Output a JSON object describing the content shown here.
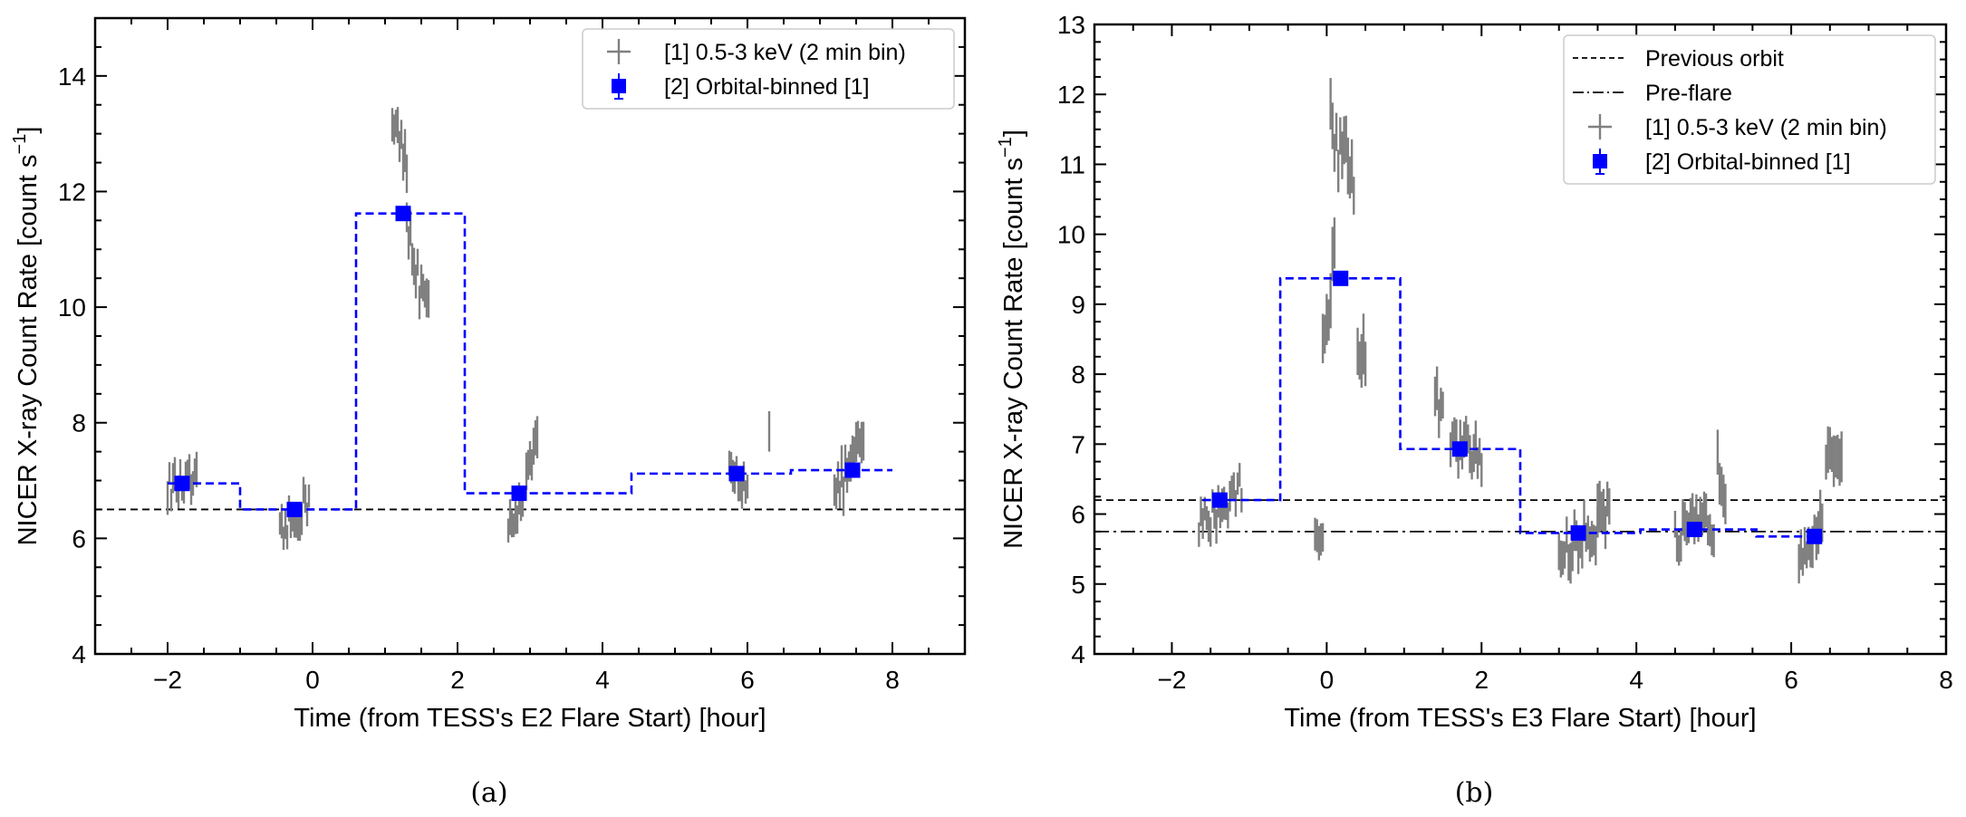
{
  "chart_data": [
    {
      "type": "line",
      "panel_caption": "(a)",
      "xlabel": "Time (from TESS's E2 Flare Start) [hour]",
      "ylabel": "NICER X-ray Count Rate [count s",
      "ylabel_sup": "−1",
      "ylabel_end": "]",
      "xlim": [
        -3,
        9
      ],
      "ylim": [
        4,
        15
      ],
      "xticks": [
        -2,
        0,
        2,
        4,
        6,
        8
      ],
      "xtick_labels": [
        "−2",
        "0",
        "2",
        "4",
        "6",
        "8"
      ],
      "yticks": [
        4,
        6,
        8,
        10,
        12,
        14
      ],
      "ytick_labels": [
        "4",
        "6",
        "8",
        "10",
        "12",
        "14"
      ],
      "hlines": [
        {
          "name": "baseline",
          "y": 6.5,
          "style": "dashed",
          "color": "#000000"
        }
      ],
      "step": {
        "name": "[2] Orbital-binned [1]",
        "color": "#0000ff",
        "edges": [
          -2.0,
          -1.0,
          0.6,
          2.1,
          4.4,
          6.6,
          8.0
        ],
        "values": [
          6.95,
          6.5,
          11.62,
          6.78,
          7.12,
          7.18
        ]
      },
      "binned": {
        "name": "[2] Orbital-binned [1]",
        "color": "#0000ff",
        "x": [
          -1.8,
          -0.25,
          1.25,
          2.85,
          5.85,
          7.45
        ],
        "y": [
          6.95,
          6.5,
          11.62,
          6.78,
          7.12,
          7.18
        ]
      },
      "raw_clusters": {
        "name": "[1] 0.5-3 keV (2 min bin)",
        "color": "#808080",
        "segments": [
          {
            "x0": -2.0,
            "x1": -1.6,
            "y0": 6.9,
            "y1": 6.95,
            "spread": 0.25,
            "err": 0.25
          },
          {
            "x0": -0.45,
            "x1": -0.05,
            "y0": 6.0,
            "y1": 6.7,
            "spread": 0.3,
            "err": 0.25
          },
          {
            "x0": 1.1,
            "x1": 1.3,
            "y0": 13.4,
            "y1": 12.3,
            "spread": 0.35,
            "err": 0.3
          },
          {
            "x0": 1.3,
            "x1": 1.6,
            "y0": 11.4,
            "y1": 9.8,
            "spread": 0.4,
            "err": 0.3
          },
          {
            "x0": 2.7,
            "x1": 2.9,
            "y0": 6.2,
            "y1": 6.7,
            "spread": 0.2,
            "err": 0.25
          },
          {
            "x0": 2.95,
            "x1": 3.1,
            "y0": 7.0,
            "y1": 7.7,
            "spread": 0.2,
            "err": 0.3
          },
          {
            "x0": 5.75,
            "x1": 6.0,
            "y0": 7.1,
            "y1": 7.0,
            "spread": 0.25,
            "err": 0.25
          },
          {
            "x0": 6.3,
            "x1": 6.3,
            "y0": 7.85,
            "y1": 7.85,
            "spread": 0.0,
            "err": 0.4
          },
          {
            "x0": 7.2,
            "x1": 7.6,
            "y0": 6.7,
            "y1": 7.7,
            "spread": 0.3,
            "err": 0.3
          }
        ]
      },
      "legend": {
        "position": "top-right",
        "entries": [
          {
            "label": "[1] 0.5-3 keV (2 min bin)",
            "marker": "errorbar-gray"
          },
          {
            "label": "[2] Orbital-binned [1]",
            "marker": "square-blue"
          }
        ]
      }
    },
    {
      "type": "line",
      "panel_caption": "(b)",
      "xlabel": "Time (from TESS's E3 Flare Start) [hour]",
      "ylabel": "NICER X-ray Count Rate [count s",
      "ylabel_sup": "−1",
      "ylabel_end": "]",
      "xlim": [
        -3,
        8
      ],
      "ylim": [
        4,
        13
      ],
      "xticks": [
        -2,
        0,
        2,
        4,
        6,
        8
      ],
      "xtick_labels": [
        "−2",
        "0",
        "2",
        "4",
        "6",
        "8"
      ],
      "yticks": [
        4,
        5,
        6,
        7,
        8,
        9,
        10,
        11,
        12,
        13
      ],
      "ytick_labels": [
        "4",
        "5",
        "6",
        "7",
        "8",
        "9",
        "10",
        "11",
        "12",
        "13"
      ],
      "hlines": [
        {
          "name": "Previous orbit",
          "y": 6.2,
          "style": "dashed",
          "color": "#000000"
        },
        {
          "name": "Pre-flare",
          "y": 5.75,
          "style": "dashdot",
          "color": "#000000"
        }
      ],
      "step": {
        "name": "[2] Orbital-binned [1]",
        "color": "#0000ff",
        "edges": [
          -1.6,
          -0.6,
          0.95,
          2.5,
          4.05,
          5.55,
          6.35
        ],
        "values": [
          6.2,
          9.37,
          6.93,
          5.73,
          5.78,
          5.68
        ]
      },
      "binned": {
        "name": "[2] Orbital-binned [1]",
        "color": "#0000ff",
        "x": [
          -1.38,
          0.18,
          1.72,
          3.25,
          4.75,
          6.3
        ],
        "y": [
          6.2,
          9.37,
          6.93,
          5.73,
          5.78,
          5.68
        ]
      },
      "raw_clusters": {
        "name": "[1] 0.5-3 keV (2 min bin)",
        "color": "#808080",
        "segments": [
          {
            "x0": -1.65,
            "x1": -1.1,
            "y0": 5.8,
            "y1": 6.4,
            "spread": 0.25,
            "err": 0.2
          },
          {
            "x0": -0.15,
            "x1": -0.05,
            "y0": 5.75,
            "y1": 5.7,
            "spread": 0.15,
            "err": 0.2
          },
          {
            "x0": 0.05,
            "x1": 0.35,
            "y0": 11.5,
            "y1": 10.9,
            "spread": 0.4,
            "err": 0.35
          },
          {
            "x0": -0.05,
            "x1": 0.1,
            "y0": 8.3,
            "y1": 9.8,
            "spread": 0.3,
            "err": 0.35
          },
          {
            "x0": 0.4,
            "x1": 0.5,
            "y0": 8.5,
            "y1": 8.2,
            "spread": 0.3,
            "err": 0.35
          },
          {
            "x0": 1.4,
            "x1": 1.5,
            "y0": 7.7,
            "y1": 7.4,
            "spread": 0.2,
            "err": 0.25
          },
          {
            "x0": 1.6,
            "x1": 2.0,
            "y0": 7.0,
            "y1": 6.8,
            "spread": 0.25,
            "err": 0.25
          },
          {
            "x0": 3.0,
            "x1": 3.5,
            "y0": 5.4,
            "y1": 5.8,
            "spread": 0.25,
            "err": 0.25
          },
          {
            "x0": 3.5,
            "x1": 3.65,
            "y0": 6.3,
            "y1": 6.0,
            "spread": 0.3,
            "err": 0.3
          },
          {
            "x0": 4.5,
            "x1": 5.0,
            "y0": 5.6,
            "y1": 5.9,
            "spread": 0.3,
            "err": 0.25
          },
          {
            "x0": 5.05,
            "x1": 5.15,
            "y0": 6.7,
            "y1": 6.3,
            "spread": 0.2,
            "err": 0.3
          },
          {
            "x0": 6.1,
            "x1": 6.4,
            "y0": 5.5,
            "y1": 5.9,
            "spread": 0.25,
            "err": 0.25
          },
          {
            "x0": 6.45,
            "x1": 6.65,
            "y0": 6.7,
            "y1": 6.95,
            "spread": 0.2,
            "err": 0.3
          }
        ]
      },
      "legend": {
        "position": "top-right",
        "entries": [
          {
            "label": "Previous orbit",
            "marker": "dashed-line"
          },
          {
            "label": "Pre-flare",
            "marker": "dashdot-line"
          },
          {
            "label": "[1] 0.5-3 keV (2 min bin)",
            "marker": "errorbar-gray"
          },
          {
            "label": "[2] Orbital-binned [1]",
            "marker": "square-blue"
          }
        ]
      }
    }
  ]
}
